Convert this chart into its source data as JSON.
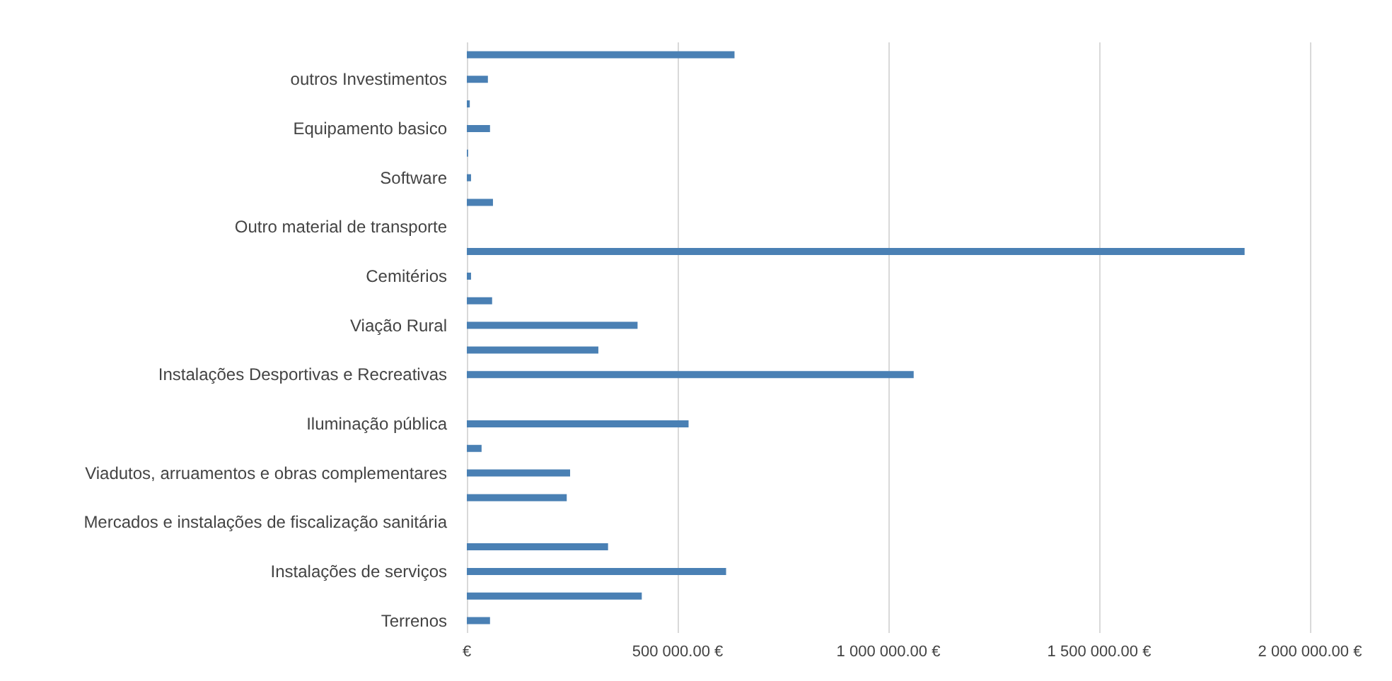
{
  "chart_data": {
    "type": "bar",
    "orientation": "horizontal",
    "categories": [
      null,
      "outros Investimentos",
      null,
      "Equipamento basico",
      null,
      "Software",
      null,
      "Outro material de transporte",
      null,
      "Cemitérios",
      null,
      "Viação Rural",
      null,
      "Instalações Desportivas e Recreativas",
      null,
      "Iluminação pública",
      null,
      "Viadutos, arruamentos e obras complementares",
      null,
      "Mercados e instalações de fiscalização sanitária",
      null,
      "Instalações de serviços",
      null,
      "Terrenos"
    ],
    "values": [
      635000,
      50000,
      7000,
      55000,
      3000,
      10000,
      62000,
      0,
      1845000,
      10000,
      60000,
      405000,
      312000,
      1060000,
      0,
      526000,
      35000,
      245000,
      237000,
      0,
      335000,
      615000,
      415000,
      55000
    ],
    "color": "#4a80b4",
    "xlim": [
      0,
      2000000
    ],
    "xticks": [
      {
        "value": 0,
        "label": "€"
      },
      {
        "value": 500000,
        "label": "500 000.00 €"
      },
      {
        "value": 1000000,
        "label": "1 000 000.00 €"
      },
      {
        "value": 1500000,
        "label": "1 500 000.00 €"
      },
      {
        "value": 2000000,
        "label": "2 000 000.00 €"
      }
    ],
    "grid": "x"
  }
}
